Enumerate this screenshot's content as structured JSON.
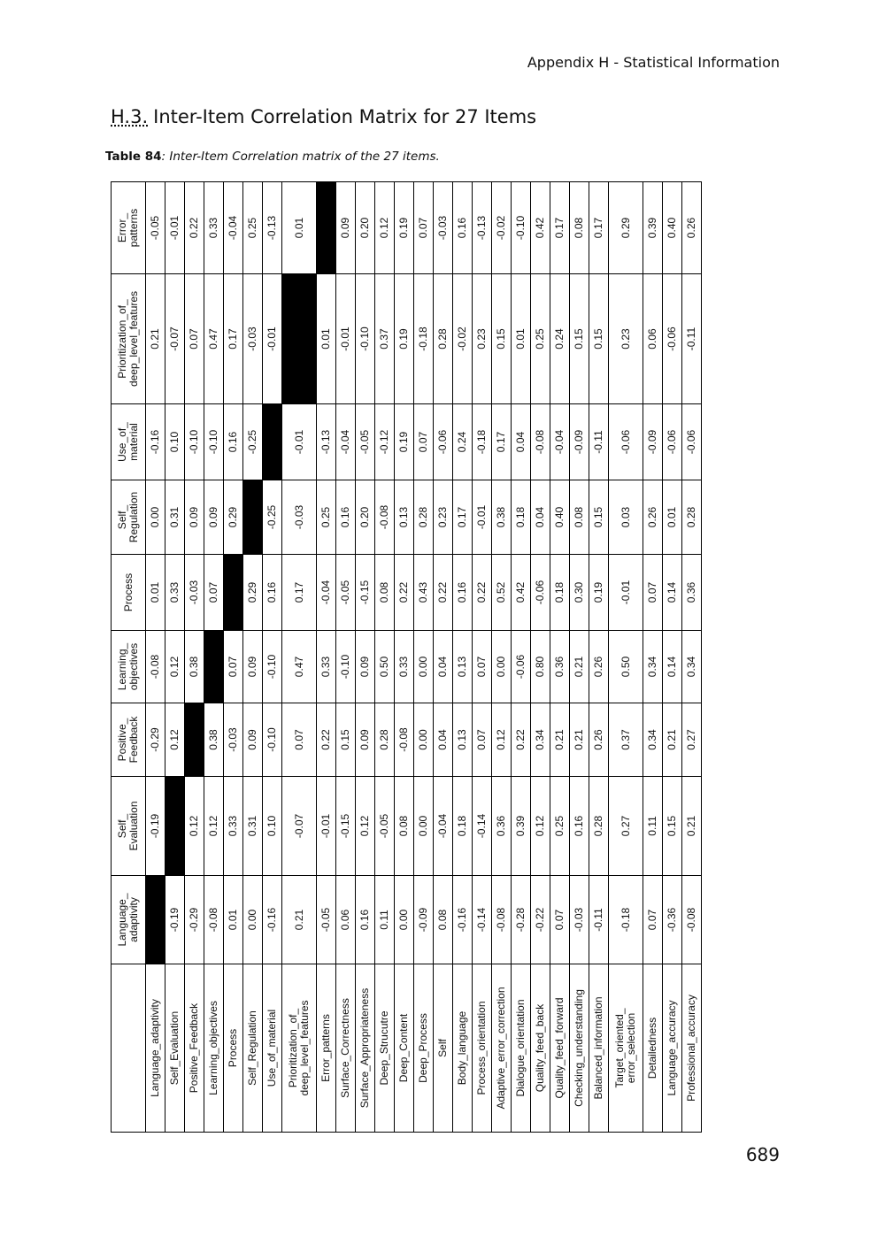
{
  "header": {
    "running_title": "Appendix H - Statistical Information"
  },
  "heading": {
    "number": "H.3.",
    "text": "Inter-Item Correlation Matrix for 27 Items"
  },
  "caption": {
    "label": "Table 84",
    "text": ": Inter-Item Correlation matrix of the 27 items."
  },
  "table": {
    "columns": [
      "Language_\nadaptivity",
      "Self_\nEvaluation",
      "Positive_\nFeedback",
      "Learning_\nobjectives",
      "Process",
      "Self_\nRegulation",
      "Use_of_\nmaterial",
      "Prioritization_of_\ndeep_level_features",
      "Error_\npatterns"
    ],
    "rows": [
      {
        "label": "Language_adaptivity",
        "values": [
          null,
          "-0.19",
          "-0.29",
          "-0.08",
          "0.01",
          "0.00",
          "-0.16",
          "0.21",
          "-0.05"
        ]
      },
      {
        "label": "Self_Evaluation",
        "values": [
          "-0.19",
          null,
          "0.12",
          "0.12",
          "0.33",
          "0.31",
          "0.10",
          "-0.07",
          "-0.01"
        ]
      },
      {
        "label": "Positive_Feedback",
        "values": [
          "-0.29",
          "0.12",
          null,
          "0.38",
          "-0.03",
          "0.09",
          "-0.10",
          "0.07",
          "0.22"
        ]
      },
      {
        "label": "Learning_objectives",
        "values": [
          "-0.08",
          "0.12",
          "0.38",
          null,
          "0.07",
          "0.09",
          "-0.10",
          "0.47",
          "0.33"
        ]
      },
      {
        "label": "Process",
        "values": [
          "0.01",
          "0.33",
          "-0.03",
          "0.07",
          null,
          "0.29",
          "0.16",
          "0.17",
          "-0.04"
        ]
      },
      {
        "label": "Self_Regulation",
        "values": [
          "0.00",
          "0.31",
          "0.09",
          "0.09",
          "0.29",
          null,
          "-0.25",
          "-0.03",
          "0.25"
        ]
      },
      {
        "label": "Use_of_material",
        "values": [
          "-0.16",
          "0.10",
          "-0.10",
          "-0.10",
          "0.16",
          "-0.25",
          null,
          "-0.01",
          "-0.13"
        ]
      },
      {
        "label": "Prioritization_of_\ndeep_level_features",
        "values": [
          "0.21",
          "-0.07",
          "0.07",
          "0.47",
          "0.17",
          "-0.03",
          "-0.01",
          null,
          "0.01"
        ]
      },
      {
        "label": "Error_patterns",
        "values": [
          "-0.05",
          "-0.01",
          "0.22",
          "0.33",
          "-0.04",
          "0.25",
          "-0.13",
          "0.01",
          null
        ]
      },
      {
        "label": "Surface_Correctness",
        "values": [
          "0.06",
          "-0.15",
          "0.15",
          "-0.10",
          "-0.05",
          "0.16",
          "-0.04",
          "-0.01",
          "0.09"
        ]
      },
      {
        "label": "Surface_Appropriateness",
        "values": [
          "0.16",
          "0.12",
          "0.09",
          "0.09",
          "-0.15",
          "0.20",
          "-0.05",
          "-0.10",
          "0.20"
        ]
      },
      {
        "label": "Deep_Strucutre",
        "values": [
          "0.11",
          "-0.05",
          "0.28",
          "0.50",
          "0.08",
          "-0.08",
          "-0.12",
          "0.37",
          "0.12"
        ]
      },
      {
        "label": "Deep_Content",
        "values": [
          "0.00",
          "0.08",
          "-0.08",
          "0.33",
          "0.22",
          "0.13",
          "0.19",
          "0.19",
          "0.19"
        ]
      },
      {
        "label": "Deep_Process",
        "values": [
          "-0.09",
          "0.00",
          "0.00",
          "0.00",
          "0.43",
          "0.28",
          "0.07",
          "-0.18",
          "0.07"
        ]
      },
      {
        "label": "Self",
        "values": [
          "0.08",
          "-0.04",
          "0.04",
          "0.04",
          "0.22",
          "0.23",
          "-0.06",
          "0.28",
          "-0.03"
        ]
      },
      {
        "label": "Body_language",
        "values": [
          "-0.16",
          "0.18",
          "0.13",
          "0.13",
          "0.16",
          "0.17",
          "0.24",
          "-0.02",
          "0.16"
        ]
      },
      {
        "label": "Process_orientation",
        "values": [
          "-0.14",
          "-0.14",
          "0.07",
          "0.07",
          "0.22",
          "-0.01",
          "-0.18",
          "0.23",
          "-0.13"
        ]
      },
      {
        "label": "Adaptive_error_correction",
        "values": [
          "-0.08",
          "0.36",
          "0.12",
          "0.00",
          "0.52",
          "0.38",
          "0.17",
          "0.15",
          "-0.02"
        ]
      },
      {
        "label": "Dialogue_orientation",
        "values": [
          "-0.28",
          "0.39",
          "0.22",
          "-0.06",
          "0.42",
          "0.18",
          "0.04",
          "0.01",
          "-0.10"
        ]
      },
      {
        "label": "Quality_feed_back",
        "values": [
          "-0.22",
          "0.12",
          "0.34",
          "0.80",
          "-0.06",
          "0.04",
          "-0.08",
          "0.25",
          "0.42"
        ]
      },
      {
        "label": "Quality_feed_forward",
        "values": [
          "0.07",
          "0.25",
          "0.21",
          "0.36",
          "0.18",
          "0.40",
          "-0.04",
          "0.24",
          "0.17"
        ]
      },
      {
        "label": "Checking_understanding",
        "values": [
          "-0.03",
          "0.16",
          "0.21",
          "0.21",
          "0.30",
          "0.08",
          "-0.09",
          "0.15",
          "0.08"
        ]
      },
      {
        "label": "Balanced_information",
        "values": [
          "-0.11",
          "0.28",
          "0.26",
          "0.26",
          "0.19",
          "0.15",
          "-0.11",
          "0.15",
          "0.17"
        ]
      },
      {
        "label": "Target_oriented_\nerror_selection",
        "values": [
          "-0.18",
          "0.27",
          "0.37",
          "0.50",
          "-0.01",
          "0.03",
          "-0.06",
          "0.23",
          "0.29"
        ]
      },
      {
        "label": "Detailedness",
        "values": [
          "0.07",
          "0.11",
          "0.34",
          "0.34",
          "0.07",
          "0.26",
          "-0.09",
          "0.06",
          "0.39"
        ]
      },
      {
        "label": "Language_accuracy",
        "values": [
          "-0.36",
          "0.15",
          "0.21",
          "0.14",
          "0.14",
          "0.01",
          "-0.06",
          "-0.06",
          "0.40"
        ]
      },
      {
        "label": "Professional_accuracy",
        "values": [
          "-0.08",
          "0.21",
          "0.27",
          "0.34",
          "0.36",
          "0.28",
          "-0.06",
          "-0.11",
          "0.26"
        ]
      }
    ]
  },
  "page_number": "689"
}
